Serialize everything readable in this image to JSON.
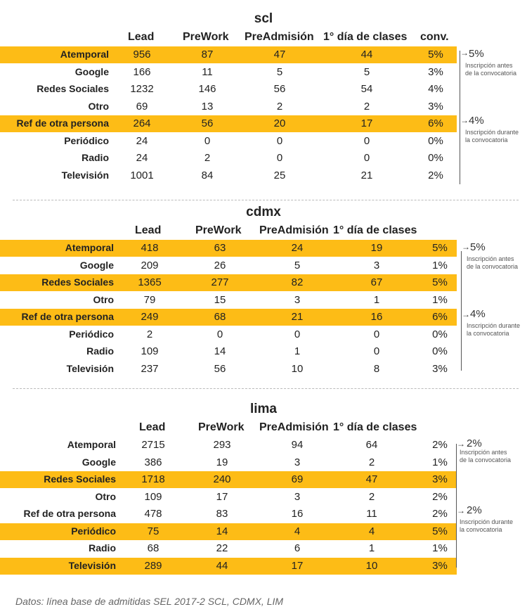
{
  "sections": [
    {
      "title": "scl",
      "headers": [
        "Lead",
        "PreWork",
        "PreAdmisión",
        "1° día de clases",
        "conv."
      ],
      "rows": [
        {
          "label": "Atemporal",
          "values": [
            "956",
            "87",
            "47",
            "44",
            "5%"
          ],
          "highlight": true
        },
        {
          "label": "Google",
          "values": [
            "166",
            "11",
            "5",
            "5",
            "3%"
          ],
          "highlight": false
        },
        {
          "label": "Redes Sociales",
          "values": [
            "1232",
            "146",
            "56",
            "54",
            "4%"
          ],
          "highlight": false
        },
        {
          "label": "Otro",
          "values": [
            "69",
            "13",
            "2",
            "2",
            "3%"
          ],
          "highlight": false
        },
        {
          "label": "Ref de otra persona",
          "values": [
            "264",
            "56",
            "20",
            "17",
            "6%"
          ],
          "highlight": true
        },
        {
          "label": "Periódico",
          "values": [
            "24",
            "0",
            "0",
            "0",
            "0%"
          ],
          "highlight": false
        },
        {
          "label": "Radio",
          "values": [
            "24",
            "2",
            "0",
            "0",
            "0%"
          ],
          "highlight": false
        },
        {
          "label": "Televisión",
          "values": [
            "1001",
            "84",
            "25",
            "21",
            "2%"
          ],
          "highlight": false
        }
      ],
      "side_before": {
        "value": "5%",
        "note1": "Inscripción antes",
        "note2": "de la convocatoria"
      },
      "side_during": {
        "value": "4%",
        "note1": "Inscripción durante",
        "note2": "la convocatoria"
      }
    },
    {
      "title": "cdmx",
      "headers": [
        "Lead",
        "PreWork",
        "PreAdmisión",
        "1° día de clases",
        ""
      ],
      "rows": [
        {
          "label": "Atemporal",
          "values": [
            "418",
            "63",
            "24",
            "19",
            "5%"
          ],
          "highlight": true
        },
        {
          "label": "Google",
          "values": [
            "209",
            "26",
            "5",
            "3",
            "1%"
          ],
          "highlight": false
        },
        {
          "label": "Redes Sociales",
          "values": [
            "1365",
            "277",
            "82",
            "67",
            "5%"
          ],
          "highlight": true
        },
        {
          "label": "Otro",
          "values": [
            "79",
            "15",
            "3",
            "1",
            "1%"
          ],
          "highlight": false
        },
        {
          "label": "Ref de otra persona",
          "values": [
            "249",
            "68",
            "21",
            "16",
            "6%"
          ],
          "highlight": true
        },
        {
          "label": "Periódico",
          "values": [
            "2",
            "0",
            "0",
            "0",
            "0%"
          ],
          "highlight": false
        },
        {
          "label": "Radio",
          "values": [
            "109",
            "14",
            "1",
            "0",
            "0%"
          ],
          "highlight": false
        },
        {
          "label": "Televisión",
          "values": [
            "237",
            "56",
            "10",
            "8",
            "3%"
          ],
          "highlight": false
        }
      ],
      "side_before": {
        "value": "5%",
        "note1": "Inscripción antes",
        "note2": "de la convocatoria"
      },
      "side_during": {
        "value": "4%",
        "note1": "Inscripción durante",
        "note2": "la convocatoria"
      }
    },
    {
      "title": "lima",
      "headers": [
        "Lead",
        "PreWork",
        "PreAdmisión",
        "1° día de clases",
        ""
      ],
      "rows": [
        {
          "label": "Atemporal",
          "values": [
            "2715",
            "293",
            "94",
            "64",
            "2%"
          ],
          "highlight": false
        },
        {
          "label": "Google",
          "values": [
            "386",
            "19",
            "3",
            "2",
            "1%"
          ],
          "highlight": false
        },
        {
          "label": "Redes Sociales",
          "values": [
            "1718",
            "240",
            "69",
            "47",
            "3%"
          ],
          "highlight": true
        },
        {
          "label": "Otro",
          "values": [
            "109",
            "17",
            "3",
            "2",
            "2%"
          ],
          "highlight": false
        },
        {
          "label": "Ref de otra persona",
          "values": [
            "478",
            "83",
            "16",
            "11",
            "2%"
          ],
          "highlight": false
        },
        {
          "label": "Periódico",
          "values": [
            "75",
            "14",
            "4",
            "4",
            "5%"
          ],
          "highlight": true
        },
        {
          "label": "Radio",
          "values": [
            "68",
            "22",
            "6",
            "1",
            "1%"
          ],
          "highlight": false
        },
        {
          "label": "Televisión",
          "values": [
            "289",
            "44",
            "17",
            "10",
            "3%"
          ],
          "highlight": true
        }
      ],
      "side_before": {
        "value": "2%",
        "note1": "Inscripción antes",
        "note2": "de la convocatoria"
      },
      "side_during": {
        "value": "2%",
        "note1": "Inscripción durante",
        "note2": "la convocatoria"
      }
    }
  ],
  "footer": "Datos: línea base de admitidas SEL 2017-2 SCL, CDMX, LIM",
  "colors": {
    "highlight": "#fdbc16"
  }
}
